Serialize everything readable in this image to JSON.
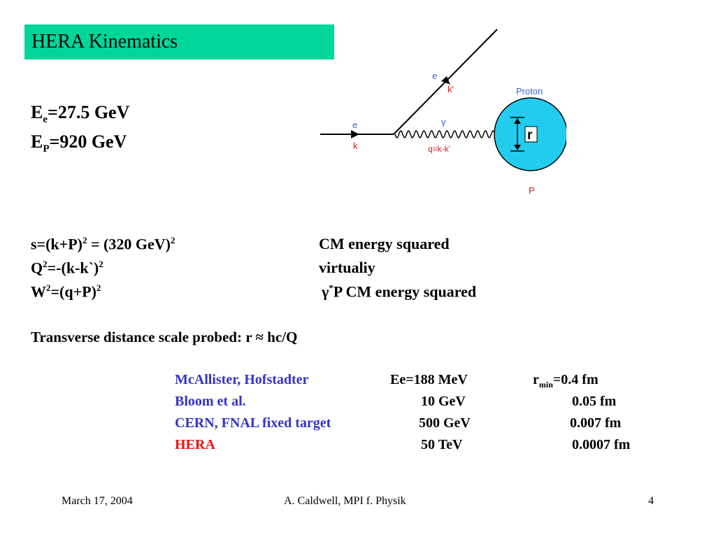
{
  "title": "HERA Kinematics",
  "energies": {
    "ee_main": "E",
    "ee_sub": "e",
    "ee_value": "=27.5 GeV",
    "ep_main": "E",
    "ep_sub": "P",
    "ep_value": "=920 GeV"
  },
  "diagram": {
    "incoming_e": "e",
    "incoming_k": "k",
    "outgoing_e": "e",
    "outgoing_k": "k'",
    "photon": "γ",
    "momentum_transfer": "q=k-k'",
    "proton_label": "Proton",
    "radius_label": "r",
    "proton_symbol": "P",
    "colors": {
      "proton_fill": "#22ccee",
      "label_blue": "#3366cc",
      "label_red": "#cc2222"
    }
  },
  "formulas": {
    "s": {
      "a": "s=(k+P)",
      "a_sup": "2",
      "b": " = (320 GeV)",
      "b_sup": "2",
      "desc": "CM energy squared"
    },
    "q2": {
      "a": "Q",
      "a_sup": "2",
      "b": "=-(k-k`)",
      "b_sup": "2",
      "desc": "virtualiy"
    },
    "w2": {
      "a": "W",
      "a_sup": "2",
      "b": "=(q+P)",
      "b_sup": "2",
      "desc_gamma": "γ",
      "desc_sup": "*",
      "desc": "P CM energy squared"
    }
  },
  "transverse": "Transverse distance scale probed: r ≈ hc/Q",
  "experiments": {
    "rows": [
      {
        "name": "McAllister, Hofstadter",
        "energy": "Ee=188 MeV",
        "r_main": "r",
        "r_sub": "min",
        "r_value": "=0.4 fm",
        "color": "#3333cc"
      },
      {
        "name": "Bloom et al.",
        "energy": "10 GeV",
        "r_value": "0.05 fm",
        "color": "#3333cc"
      },
      {
        "name": "CERN, FNAL fixed target",
        "energy": "500 GeV",
        "r_value": "0.007 fm",
        "color": "#3333cc"
      },
      {
        "name": "HERA",
        "energy": "50 TeV",
        "r_value": "0.0007 fm",
        "color": "#ee1111"
      }
    ]
  },
  "footer": {
    "date": "March 17, 2004",
    "author": "A. Caldwell, MPI f. Physik",
    "page": "4"
  }
}
